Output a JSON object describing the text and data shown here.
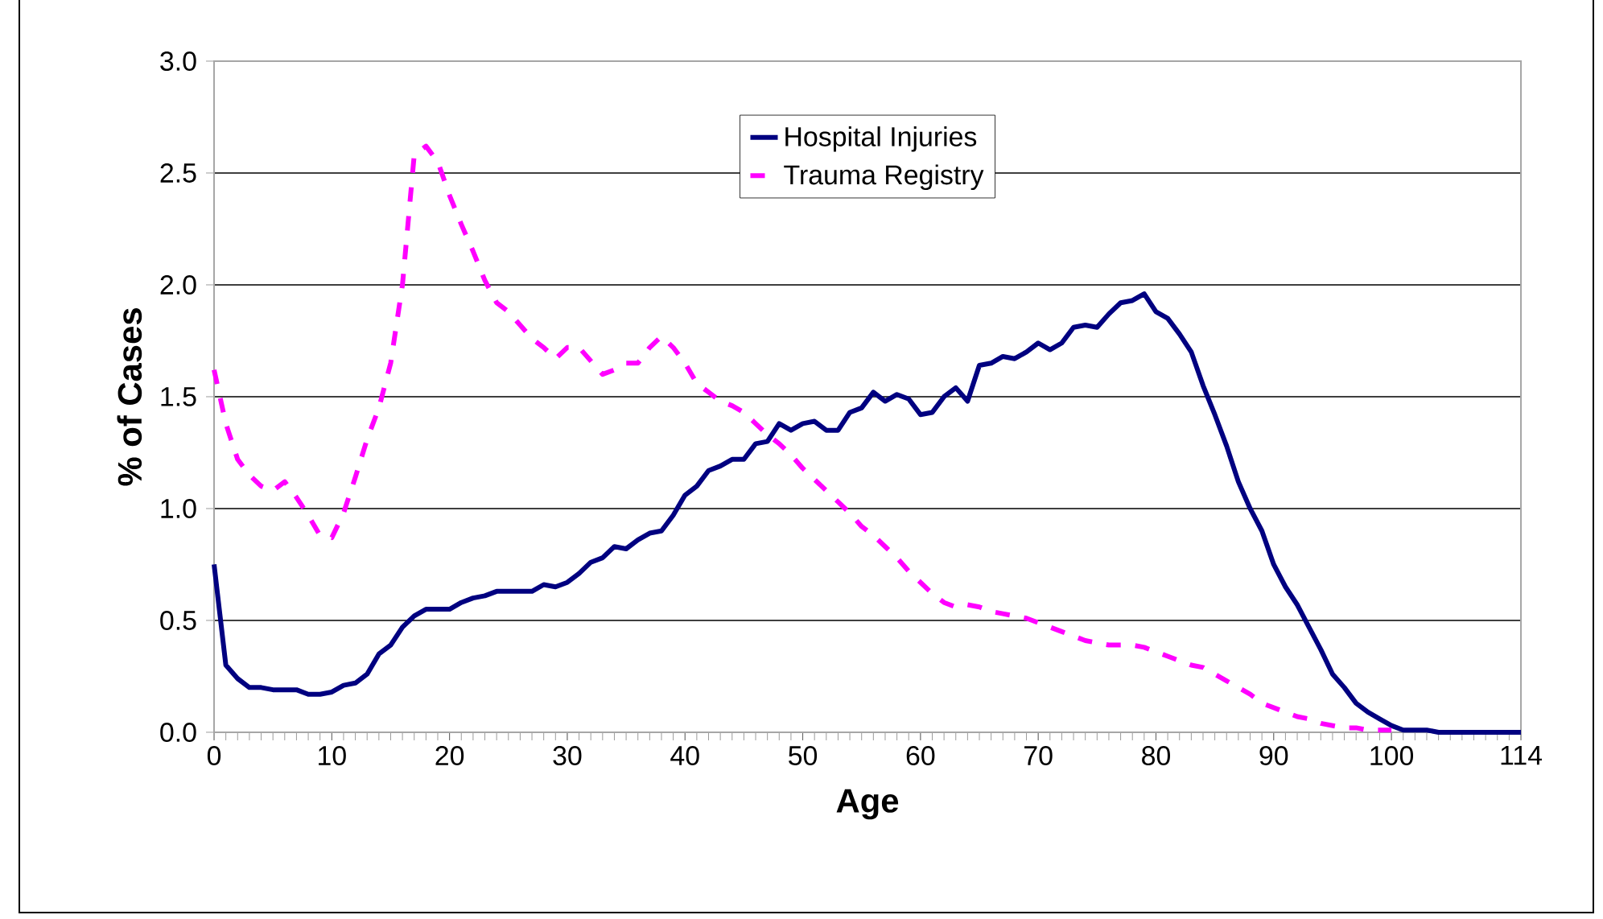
{
  "chart_data": {
    "type": "line",
    "xlabel": "Age",
    "ylabel": "% of Cases",
    "categories": [
      "0",
      null,
      null,
      null,
      null,
      null,
      null,
      null,
      null,
      null,
      "10",
      null,
      null,
      null,
      null,
      null,
      null,
      null,
      null,
      null,
      "20",
      null,
      null,
      null,
      null,
      null,
      null,
      null,
      null,
      null,
      "30",
      null,
      null,
      null,
      null,
      null,
      null,
      null,
      null,
      null,
      "40",
      null,
      null,
      null,
      null,
      null,
      null,
      null,
      null,
      null,
      "50",
      null,
      null,
      null,
      null,
      null,
      null,
      null,
      null,
      null,
      "60",
      null,
      null,
      null,
      null,
      null,
      null,
      null,
      null,
      null,
      "70",
      null,
      null,
      null,
      null,
      null,
      null,
      null,
      null,
      null,
      "80",
      null,
      null,
      null,
      null,
      null,
      null,
      null,
      null,
      null,
      "90",
      null,
      null,
      null,
      null,
      null,
      null,
      null,
      null,
      null,
      "100",
      null,
      null,
      null,
      null,
      null,
      null,
      null,
      null,
      null,
      null,
      "114"
    ],
    "series": [
      {
        "name": "Hospital Injuries",
        "color": "#000080",
        "line_style": "solid",
        "values": [
          0.75,
          0.3,
          0.24,
          0.2,
          0.2,
          0.19,
          0.19,
          0.19,
          0.17,
          0.17,
          0.18,
          0.21,
          0.22,
          0.26,
          0.35,
          0.39,
          0.47,
          0.52,
          0.55,
          0.55,
          0.55,
          0.58,
          0.6,
          0.61,
          0.63,
          0.63,
          0.63,
          0.63,
          0.66,
          0.65,
          0.67,
          0.71,
          0.76,
          0.78,
          0.83,
          0.82,
          0.86,
          0.89,
          0.9,
          0.97,
          1.06,
          1.1,
          1.17,
          1.19,
          1.22,
          1.22,
          1.29,
          1.3,
          1.38,
          1.35,
          1.38,
          1.39,
          1.35,
          1.35,
          1.43,
          1.45,
          1.52,
          1.48,
          1.51,
          1.49,
          1.42,
          1.43,
          1.5,
          1.54,
          1.48,
          1.64,
          1.65,
          1.68,
          1.67,
          1.7,
          1.74,
          1.71,
          1.74,
          1.81,
          1.82,
          1.81,
          1.87,
          1.92,
          1.93,
          1.96,
          1.88,
          1.85,
          1.78,
          1.7,
          1.55,
          1.42,
          1.28,
          1.12,
          1.0,
          0.9,
          0.75,
          0.65,
          0.57,
          0.47,
          0.37,
          0.26,
          0.2,
          0.13,
          0.09,
          0.06,
          0.03,
          0.01,
          0.01,
          0.01,
          0.0,
          0.0,
          0.0,
          0.0,
          0.0,
          0.0,
          0.0,
          0.0
        ]
      },
      {
        "name": "Trauma Registry",
        "color": "#ff00ff",
        "line_style": "dashed",
        "values": [
          1.62,
          1.38,
          1.22,
          1.15,
          1.1,
          1.08,
          1.12,
          1.05,
          0.97,
          0.88,
          0.87,
          0.98,
          1.14,
          1.31,
          1.45,
          1.65,
          2.0,
          2.58,
          2.62,
          2.55,
          2.4,
          2.27,
          2.15,
          2.02,
          1.92,
          1.88,
          1.82,
          1.76,
          1.72,
          1.67,
          1.72,
          1.72,
          1.66,
          1.6,
          1.62,
          1.65,
          1.65,
          1.72,
          1.77,
          1.72,
          1.65,
          1.56,
          1.52,
          1.48,
          1.46,
          1.43,
          1.38,
          1.33,
          1.29,
          1.24,
          1.18,
          1.13,
          1.08,
          1.03,
          0.98,
          0.92,
          0.88,
          0.83,
          0.78,
          0.72,
          0.67,
          0.62,
          0.58,
          0.56,
          0.57,
          0.56,
          0.54,
          0.53,
          0.52,
          0.51,
          0.49,
          0.47,
          0.45,
          0.43,
          0.41,
          0.4,
          0.39,
          0.39,
          0.39,
          0.38,
          0.36,
          0.34,
          0.32,
          0.3,
          0.29,
          0.26,
          0.23,
          0.2,
          0.17,
          0.13,
          0.11,
          0.09,
          0.07,
          0.06,
          0.04,
          0.03,
          0.02,
          0.02,
          0.01,
          0.01,
          0.01,
          null,
          null,
          null,
          null,
          null,
          null,
          null,
          null,
          null,
          null,
          null
        ]
      }
    ],
    "ylim": [
      0,
      3.0
    ],
    "yticks": [
      {
        "value": 0,
        "label": "0.0"
      },
      {
        "value": 0.5,
        "label": "0.5"
      },
      {
        "value": 1.0,
        "label": "1.0"
      },
      {
        "value": 1.5,
        "label": "1.5"
      },
      {
        "value": 2.0,
        "label": "2.0"
      },
      {
        "value": 2.5,
        "label": "2.5"
      },
      {
        "value": 3.0,
        "label": "3.0"
      }
    ],
    "grid": "y",
    "legend": "top"
  }
}
